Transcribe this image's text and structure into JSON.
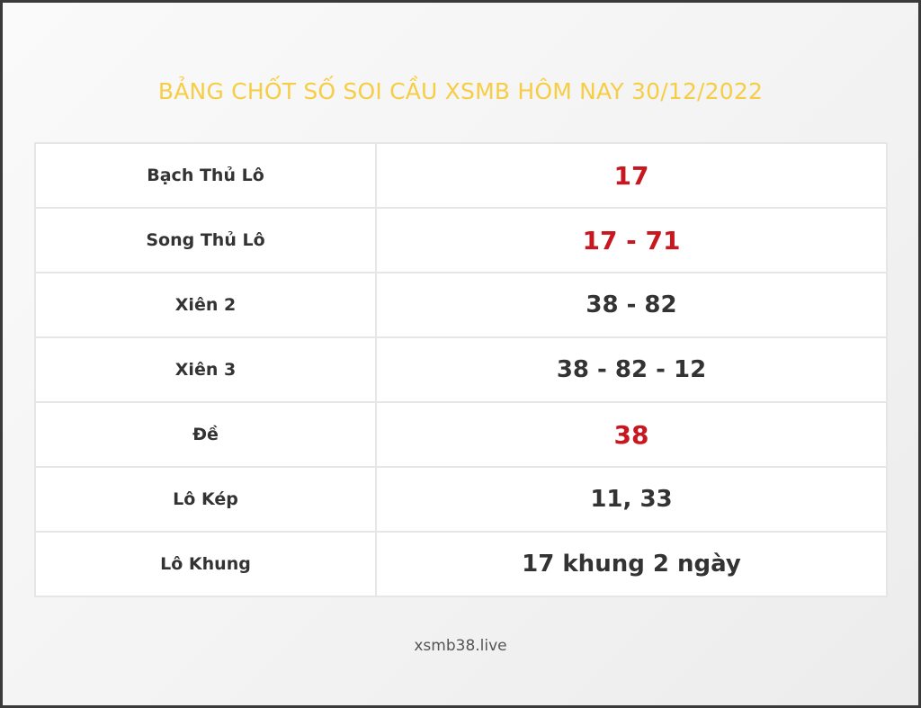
{
  "title": "BẢNG CHỐT SỐ SOI CẦU XSMB HÔM NAY 30/12/2022",
  "colors": {
    "title": "#f7cd45",
    "highlight": "#c8171e",
    "text": "#333333"
  },
  "rows": [
    {
      "label": "Bạch Thủ Lô",
      "value": "17",
      "highlight": true
    },
    {
      "label": "Song Thủ Lô",
      "value": "17 - 71",
      "highlight": true
    },
    {
      "label": "Xiên 2",
      "value": "38 - 82",
      "highlight": false
    },
    {
      "label": "Xiên 3",
      "value": "38 - 82 - 12",
      "highlight": false
    },
    {
      "label": "Đề",
      "value": "38",
      "highlight": true
    },
    {
      "label": "Lô Kép",
      "value": "11, 33",
      "highlight": false
    },
    {
      "label": "Lô Khung",
      "value": "17 khung 2 ngày",
      "highlight": false
    }
  ],
  "footer": "xsmb38.live"
}
